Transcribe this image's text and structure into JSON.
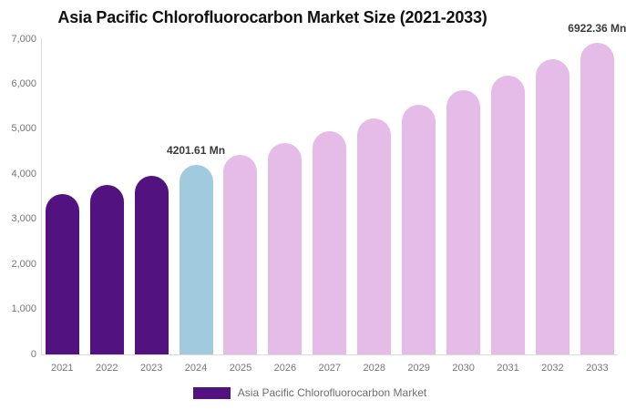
{
  "chart_data": {
    "type": "bar",
    "title": "Asia Pacific Chlorofluorocarbon Market Size (2021-2033)",
    "xlabel": "",
    "ylabel": "",
    "unit": "Mn",
    "categories": [
      "2021",
      "2022",
      "2023",
      "2024",
      "2025",
      "2026",
      "2027",
      "2028",
      "2029",
      "2030",
      "2031",
      "2032",
      "2033"
    ],
    "values": [
      3557,
      3760,
      3975,
      4201.61,
      4441,
      4695,
      4962,
      5246,
      5545,
      5861,
      6195,
      6549,
      6922.36
    ],
    "ylim": [
      0,
      7000
    ],
    "ytick_labels": [
      "0",
      "1,000",
      "2,000",
      "3,000",
      "4,000",
      "5,000",
      "6,000",
      "7,000"
    ],
    "grid": false,
    "legend_position": "bottom",
    "annotations": [
      {
        "category": "2024",
        "text": "4201.61 Mn"
      },
      {
        "category": "2033",
        "text": "6922.36 Mn"
      }
    ],
    "color_roles": [
      "historical",
      "historical",
      "historical",
      "highlight",
      "forecast",
      "forecast",
      "forecast",
      "forecast",
      "forecast",
      "forecast",
      "forecast",
      "forecast",
      "forecast"
    ],
    "colors": {
      "historical": "#521380",
      "highlight": "#A2CADF",
      "forecast": "#E5BCE7",
      "axis_line": "#DCDCDC",
      "tick_text": "#757575",
      "legend_text": "#6E6E6E",
      "title_text": "#111111",
      "annotation_text": "#3A3A3A"
    },
    "legend": [
      {
        "label": "Asia Pacific Chlorofluorocarbon Market",
        "color_role": "historical"
      }
    ]
  }
}
